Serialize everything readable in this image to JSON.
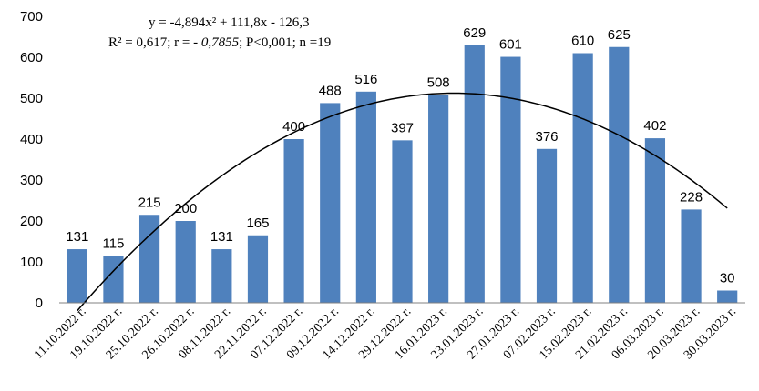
{
  "chart_data": {
    "type": "bar",
    "title": "",
    "xlabel": "",
    "ylabel": "",
    "ylim": [
      0,
      700
    ],
    "yticks": [
      "0",
      "100",
      "200",
      "300",
      "400",
      "500",
      "600",
      "700"
    ],
    "grid": false,
    "legend": "none",
    "bar_color": "#4f81bd",
    "trend_color": "#000000",
    "categories": [
      "11.10.2022 г.",
      "19.10.2022 г.",
      "25.10.2022 г.",
      "26.10.2022 г.",
      "08.11.2022 г.",
      "22.11.2022 г.",
      "07.12.2022 г.",
      "09.12.2022 г.",
      "14.12.2022 г.",
      "29.12.2022 г.",
      "16.01.2023 г.",
      "23.01.2023 г.",
      "27.01.2023 г.",
      "07.02.2023 г.",
      "15.02.2023 г.",
      "21.02.2023 г.",
      "06.03.2023 г.",
      "20.03.2023 г.",
      "30.03.2023 г."
    ],
    "values": [
      131,
      115,
      215,
      200,
      131,
      165,
      400,
      488,
      516,
      397,
      508,
      629,
      601,
      376,
      610,
      625,
      402,
      228,
      30
    ],
    "trendline": {
      "type": "polynomial",
      "a": -4.894,
      "b": 111.8,
      "c": -126.3
    },
    "annotations": {
      "equation_line1": "y = -4,894x² + 111,8x - 126,3",
      "equation_line2_part1": "R² = 0,617; r = - ",
      "equation_line2_italic": "0,7855",
      "equation_line2_part2": "; P<0,001; n =19"
    }
  }
}
